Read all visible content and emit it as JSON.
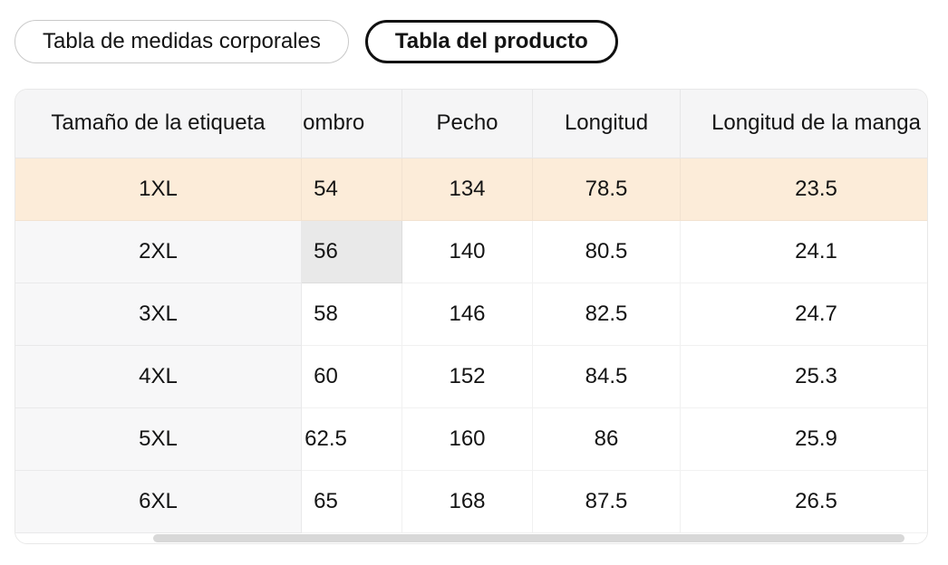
{
  "tabs": {
    "items": [
      {
        "label": "Tabla de medidas corporales",
        "selected": false
      },
      {
        "label": "Tabla del producto",
        "selected": true
      }
    ]
  },
  "size_table": {
    "columns": [
      "Tamaño de la etiqueta",
      "Hombro",
      "Pecho",
      "Longitud",
      "Longitud de la manga"
    ],
    "rows": [
      {
        "size": "1XL",
        "values": [
          "54",
          "134",
          "78.5",
          "23.5"
        ]
      },
      {
        "size": "2XL",
        "values": [
          "56",
          "140",
          "80.5",
          "24.1"
        ]
      },
      {
        "size": "3XL",
        "values": [
          "58",
          "146",
          "82.5",
          "24.7"
        ]
      },
      {
        "size": "4XL",
        "values": [
          "60",
          "152",
          "84.5",
          "25.3"
        ]
      },
      {
        "size": "5XL",
        "values": [
          "62.5",
          "160",
          "86",
          "25.9"
        ]
      },
      {
        "size": "6XL",
        "values": [
          "65",
          "168",
          "87.5",
          "26.5"
        ]
      }
    ],
    "selected_row": "1XL",
    "highlighted_cell": {
      "row": "2XL",
      "column": "Hombro",
      "value": "56"
    },
    "scrolled_horizontally": true
  },
  "colors": {
    "selected_row_bg": "#fcecd9",
    "highlighted_cell_bg": "#e9e9e9",
    "header_bg": "#f5f5f6",
    "first_column_bg": "#f7f7f8",
    "selected_tab_border": "#111111",
    "tab_border": "#c9c9c9",
    "scrollbar_thumb": "#d8d8d8",
    "text": "#141414"
  }
}
